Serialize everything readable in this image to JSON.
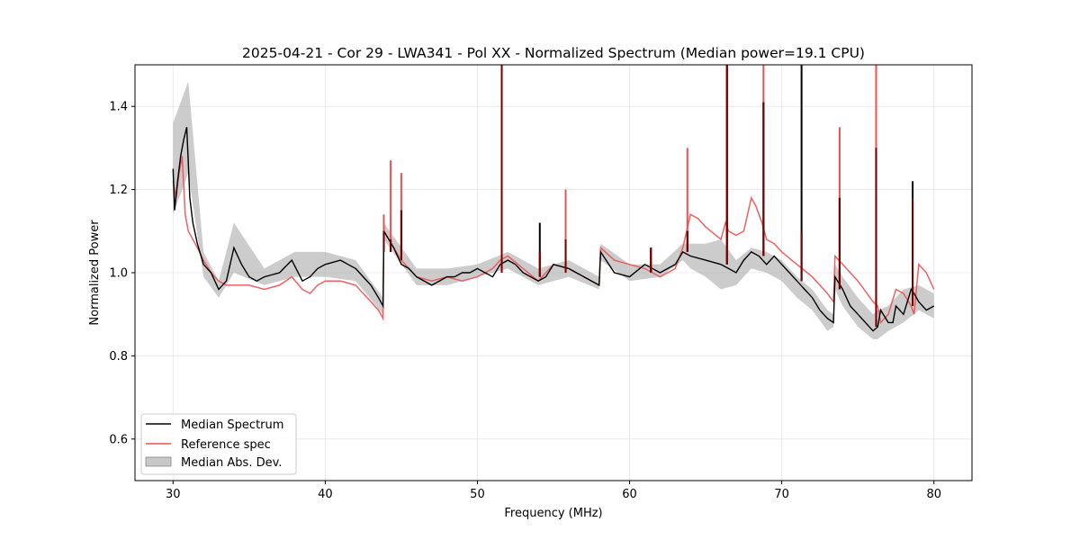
{
  "chart_data": {
    "type": "line",
    "title": "2025-04-21 - Cor 29 - LWA341 - Pol XX - Normalized Spectrum (Median power=19.1 CPU)",
    "xlabel": "Frequency (MHz)",
    "ylabel": "Normalized Power",
    "xlim": [
      27.5,
      82.5
    ],
    "ylim": [
      0.5,
      1.5
    ],
    "xticks": [
      30,
      40,
      50,
      60,
      70,
      80
    ],
    "yticks": [
      0.6,
      0.8,
      1.0,
      1.2,
      1.4
    ],
    "xtick_labels": [
      "30",
      "40",
      "50",
      "60",
      "70",
      "80"
    ],
    "ytick_labels": [
      "0.6",
      "0.8",
      "1.0",
      "1.2",
      "1.4"
    ],
    "grid": true,
    "legend_position": "lower-left",
    "colors": {
      "median": "#000000",
      "reference": "#f05050",
      "mad_fill": "#b0b0b0",
      "spike_overlap": "#7a0000",
      "grid": "#e6e6e6"
    },
    "legend": [
      {
        "label": "Median Spectrum",
        "kind": "line",
        "color": "#000000"
      },
      {
        "label": "Reference spec",
        "kind": "line",
        "color": "#f05050"
      },
      {
        "label": "Median Abs. Dev.",
        "kind": "patch",
        "color": "#b0b0b0"
      }
    ],
    "series": [
      {
        "name": "Median Spectrum",
        "color": "#000000",
        "x": [
          30.0,
          30.1,
          30.3,
          30.5,
          30.7,
          30.9,
          31.1,
          31.3,
          31.6,
          32.0,
          32.5,
          33.0,
          33.5,
          34.0,
          34.5,
          35.0,
          35.5,
          36.0,
          37.0,
          37.8,
          38.5,
          39.0,
          39.5,
          40.0,
          41.0,
          41.5,
          42.0,
          42.5,
          43.0,
          43.5,
          43.8,
          43.85,
          44.5,
          45.0,
          45.5,
          46.0,
          46.5,
          47.0,
          47.5,
          48.0,
          48.5,
          49.0,
          49.5,
          50.0,
          50.5,
          51.0,
          51.5,
          52.0,
          52.5,
          53.0,
          54.0,
          54.5,
          55.0,
          56.0,
          57.0,
          58.0,
          58.1,
          59.0,
          60.0,
          61.0,
          62.0,
          63.0,
          63.5,
          64.0,
          65.0,
          66.0,
          66.5,
          67.0,
          67.5,
          68.0,
          68.5,
          69.0,
          69.5,
          70.0,
          70.5,
          71.0,
          71.5,
          72.0,
          72.5,
          73.0,
          73.4,
          73.5,
          74.0,
          74.5,
          75.0,
          75.5,
          76.0,
          76.3,
          76.5,
          77.0,
          77.3,
          77.5,
          78.0,
          78.5,
          78.7,
          79.0,
          79.5,
          80.0
        ],
        "values": [
          1.25,
          1.15,
          1.22,
          1.28,
          1.32,
          1.35,
          1.18,
          1.12,
          1.07,
          1.02,
          1.0,
          0.96,
          0.98,
          1.06,
          1.02,
          0.99,
          0.98,
          0.99,
          1.0,
          1.03,
          0.98,
          0.99,
          1.01,
          1.02,
          1.03,
          1.02,
          1.01,
          0.99,
          0.97,
          0.94,
          0.92,
          1.1,
          1.06,
          1.02,
          1.01,
          0.99,
          0.98,
          0.97,
          0.98,
          0.99,
          0.99,
          1.0,
          1.0,
          1.01,
          1.0,
          0.99,
          1.02,
          1.03,
          1.02,
          1.0,
          0.98,
          0.99,
          1.02,
          1.01,
          0.99,
          0.97,
          1.05,
          1.0,
          0.99,
          1.02,
          1.0,
          1.02,
          1.05,
          1.04,
          1.03,
          1.02,
          1.01,
          1.0,
          1.03,
          1.05,
          1.04,
          1.02,
          1.04,
          1.02,
          1.0,
          0.98,
          0.96,
          0.94,
          0.91,
          0.89,
          0.88,
          0.99,
          0.96,
          0.92,
          0.9,
          0.88,
          0.86,
          0.87,
          0.91,
          0.88,
          0.88,
          0.92,
          0.9,
          0.96,
          0.95,
          0.93,
          0.91,
          0.92
        ]
      },
      {
        "name": "Reference spec",
        "color": "#f05050",
        "x": [
          30.0,
          30.2,
          30.4,
          30.6,
          30.8,
          31.0,
          31.3,
          31.6,
          32.0,
          32.5,
          33.0,
          33.5,
          34.0,
          35.0,
          36.0,
          37.0,
          37.8,
          38.5,
          39.0,
          39.5,
          40.0,
          41.0,
          42.0,
          42.5,
          43.0,
          43.5,
          43.8,
          43.85,
          44.5,
          45.0,
          46.0,
          47.0,
          48.0,
          49.0,
          50.0,
          51.0,
          51.5,
          52.0,
          53.0,
          54.0,
          55.0,
          56.0,
          57.0,
          58.0,
          58.1,
          59.0,
          60.0,
          61.0,
          62.0,
          63.0,
          63.5,
          64.0,
          64.5,
          65.0,
          66.0,
          66.3,
          66.5,
          67.0,
          67.5,
          68.0,
          68.3,
          68.7,
          69.0,
          69.5,
          70.0,
          71.0,
          72.0,
          73.0,
          73.4,
          73.5,
          74.0,
          75.0,
          76.0,
          76.3,
          76.5,
          77.0,
          77.5,
          78.0,
          78.5,
          78.7,
          79.0,
          79.5,
          80.0
        ],
        "values": [
          1.22,
          1.18,
          1.24,
          1.28,
          1.14,
          1.1,
          1.08,
          1.06,
          1.03,
          1.0,
          0.98,
          0.97,
          0.97,
          0.97,
          0.96,
          0.97,
          0.99,
          0.96,
          0.95,
          0.97,
          0.98,
          0.98,
          0.97,
          0.95,
          0.93,
          0.91,
          0.89,
          1.1,
          1.06,
          1.03,
          0.99,
          0.98,
          0.99,
          0.98,
          0.99,
          1.01,
          1.03,
          1.04,
          1.01,
          0.98,
          1.02,
          1.01,
          0.99,
          0.97,
          1.06,
          1.03,
          1.02,
          1.01,
          0.99,
          1.01,
          1.06,
          1.14,
          1.13,
          1.11,
          1.08,
          1.12,
          1.1,
          1.09,
          1.1,
          1.18,
          1.16,
          1.12,
          1.08,
          1.07,
          1.05,
          1.02,
          0.99,
          0.95,
          0.93,
          1.04,
          1.02,
          0.98,
          0.93,
          0.92,
          0.88,
          0.9,
          0.96,
          0.95,
          0.92,
          0.9,
          1.02,
          1.0,
          0.96
        ]
      }
    ],
    "mad_band": {
      "name": "Median Abs. Dev.",
      "x": [
        30.0,
        31.0,
        32.0,
        33.0,
        34.0,
        36.0,
        38.0,
        40.0,
        42.0,
        43.8,
        43.85,
        46.0,
        48.0,
        50.0,
        52.0,
        54.0,
        56.0,
        58.0,
        58.1,
        60.0,
        62.0,
        63.5,
        64.0,
        65.0,
        66.0,
        67.0,
        68.0,
        69.0,
        70.0,
        71.0,
        72.0,
        73.0,
        73.4,
        73.5,
        74.0,
        75.0,
        76.0,
        76.3,
        77.0,
        78.0,
        79.0,
        80.0
      ],
      "lower": [
        1.14,
        1.24,
        0.99,
        0.94,
        1.0,
        0.97,
        0.99,
        0.99,
        0.98,
        0.9,
        1.08,
        0.97,
        0.97,
        0.99,
        1.01,
        0.97,
        0.99,
        0.96,
        1.03,
        0.98,
        0.99,
        1.03,
        1.01,
        0.99,
        0.96,
        0.97,
        1.01,
        1.0,
        0.98,
        0.94,
        0.91,
        0.86,
        0.87,
        0.96,
        0.92,
        0.87,
        0.84,
        0.84,
        0.86,
        0.88,
        0.91,
        0.89
      ],
      "upper": [
        1.36,
        1.46,
        1.05,
        0.98,
        1.12,
        1.01,
        1.05,
        1.05,
        1.03,
        0.94,
        1.12,
        1.01,
        1.01,
        1.02,
        1.05,
        1.01,
        1.03,
        0.99,
        1.07,
        1.02,
        1.02,
        1.07,
        1.07,
        1.07,
        1.08,
        1.03,
        1.06,
        1.05,
        1.03,
        0.99,
        0.96,
        0.91,
        0.9,
        1.02,
        0.99,
        0.94,
        0.9,
        0.91,
        0.92,
        0.96,
        0.97,
        0.95
      ]
    },
    "spikes": [
      {
        "x": 43.85,
        "base": 1.05,
        "median_peak": 1.1,
        "reference_peak": 1.14
      },
      {
        "x": 44.3,
        "base": 1.05,
        "median_peak": 1.08,
        "reference_peak": 1.27
      },
      {
        "x": 45.0,
        "base": 1.03,
        "median_peak": 1.15,
        "reference_peak": 1.24
      },
      {
        "x": 51.6,
        "base": 1.0,
        "median_peak": 1.5,
        "reference_peak": 1.5
      },
      {
        "x": 54.1,
        "base": 0.99,
        "median_peak": 1.12,
        "reference_peak": 1.05
      },
      {
        "x": 55.8,
        "base": 1.0,
        "median_peak": 1.08,
        "reference_peak": 1.2
      },
      {
        "x": 61.4,
        "base": 1.0,
        "median_peak": 1.06,
        "reference_peak": 1.06
      },
      {
        "x": 63.8,
        "base": 1.05,
        "median_peak": 1.1,
        "reference_peak": 1.3
      },
      {
        "x": 66.4,
        "base": 1.02,
        "median_peak": 1.5,
        "reference_peak": 1.5
      },
      {
        "x": 68.8,
        "base": 1.04,
        "median_peak": 1.41,
        "reference_peak": 1.5
      },
      {
        "x": 71.3,
        "base": 0.98,
        "median_peak": 1.5,
        "reference_peak": 1.1
      },
      {
        "x": 73.8,
        "base": 0.96,
        "median_peak": 1.18,
        "reference_peak": 1.35
      },
      {
        "x": 76.2,
        "base": 0.87,
        "median_peak": 1.3,
        "reference_peak": 1.5
      },
      {
        "x": 78.6,
        "base": 0.92,
        "median_peak": 1.22,
        "reference_peak": 1.18
      }
    ]
  }
}
